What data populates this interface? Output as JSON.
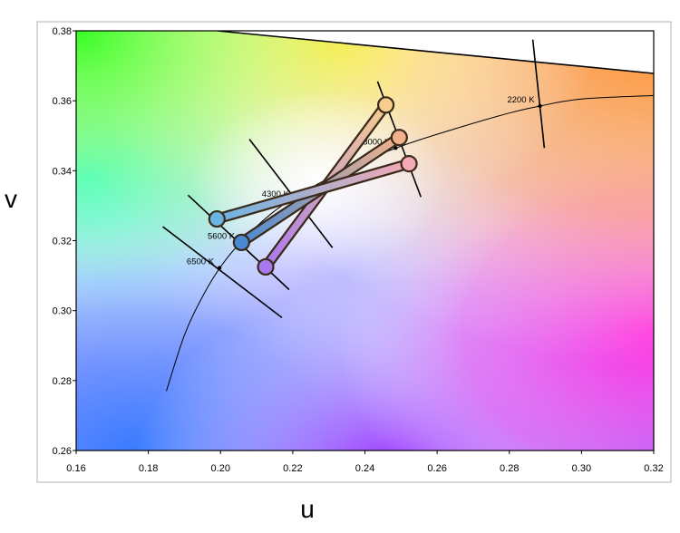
{
  "chart_data": {
    "type": "scatter",
    "title": "",
    "xlabel": "u",
    "ylabel": "v",
    "xlim": [
      0.16,
      0.32
    ],
    "ylim": [
      0.26,
      0.38
    ],
    "x_ticks": [
      "0.16",
      "0.18",
      "0.20",
      "0.22",
      "0.24",
      "0.26",
      "0.28",
      "0.30",
      "0.32"
    ],
    "y_ticks": [
      "0.26",
      "0.28",
      "0.30",
      "0.32",
      "0.34",
      "0.36",
      "0.38"
    ],
    "grid": false,
    "background": "CIE 1960 uv chromaticity gamut",
    "planckian_locus": [
      [
        0.185,
        0.277
      ],
      [
        0.19,
        0.293
      ],
      [
        0.195,
        0.304
      ],
      [
        0.2,
        0.3125
      ],
      [
        0.206,
        0.32
      ],
      [
        0.215,
        0.3285
      ],
      [
        0.224,
        0.3345
      ],
      [
        0.236,
        0.341
      ],
      [
        0.25,
        0.347
      ],
      [
        0.265,
        0.352
      ],
      [
        0.28,
        0.3565
      ],
      [
        0.2885,
        0.3585
      ],
      [
        0.3,
        0.3605
      ],
      [
        0.32,
        0.3615
      ]
    ],
    "isotemperature_lines": [
      {
        "label": "6500 K",
        "point": [
          0.1997,
          0.3122
        ],
        "end1": [
          0.184,
          0.324
        ],
        "end2": [
          0.217,
          0.298
        ]
      },
      {
        "label": "5600 K",
        "point": [
          0.2055,
          0.3195
        ],
        "end1": [
          0.191,
          0.333
        ],
        "end2": [
          0.219,
          0.306
        ]
      },
      {
        "label": "4300 K",
        "point": [
          0.2205,
          0.3315
        ],
        "end1": [
          0.208,
          0.349
        ],
        "end2": [
          0.231,
          0.318
        ]
      },
      {
        "label": "3000 K",
        "point": [
          0.2485,
          0.3465
        ],
        "end1": [
          0.2435,
          0.3655
        ],
        "end2": [
          0.2555,
          0.3325
        ]
      },
      {
        "label": "2200 K",
        "point": [
          0.2885,
          0.3585
        ],
        "end1": [
          0.2865,
          0.3775
        ],
        "end2": [
          0.2897,
          0.3465
        ]
      }
    ],
    "series": [
      {
        "points": [
          [
            0.2125,
            0.3125
          ],
          [
            0.2458,
            0.3588
          ]
        ],
        "colors": [
          "#a878f0",
          "#f6cd8e"
        ]
      },
      {
        "points": [
          [
            0.2058,
            0.3195
          ],
          [
            0.2495,
            0.3495
          ]
        ],
        "colors": [
          "#4a8ad4",
          "#f3b18b"
        ]
      },
      {
        "points": [
          [
            0.199,
            0.3262
          ],
          [
            0.2522,
            0.342
          ]
        ],
        "colors": [
          "#6ab4e4",
          "#f5a9b5"
        ]
      }
    ]
  }
}
